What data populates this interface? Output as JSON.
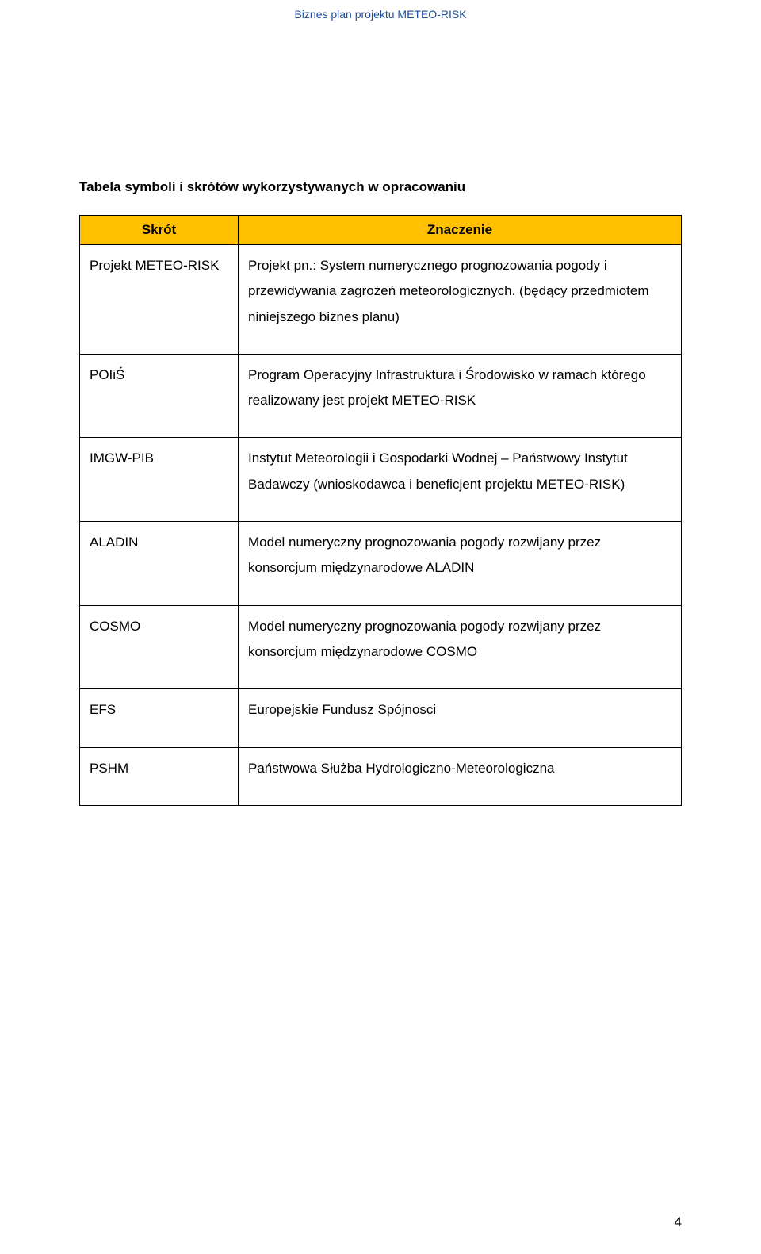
{
  "header": {
    "title": "Biznes plan projektu METEO-RISK"
  },
  "tableTitle": "Tabela symboli i skrótów wykorzystywanych w opracowaniu",
  "columns": {
    "skrot": "Skrót",
    "znaczenie": "Znaczenie"
  },
  "rows": [
    {
      "skrot": "Projekt METEO-RISK",
      "znaczenie": "Projekt pn.: System numerycznego prognozowania pogody i przewidywania zagrożeń meteorologicznych. (będący przedmiotem niniejszego biznes planu)"
    },
    {
      "skrot": "POIiŚ",
      "znaczenie": "Program Operacyjny Infrastruktura i Środowisko w ramach którego realizowany jest projekt METEO-RISK"
    },
    {
      "skrot": "IMGW-PIB",
      "znaczenie": "Instytut Meteorologii i Gospodarki Wodnej – Państwowy Instytut Badawczy (wnioskodawca i beneficjent projektu METEO-RISK)"
    },
    {
      "skrot": "ALADIN",
      "znaczenie": "Model numeryczny prognozowania pogody rozwijany przez konsorcjum międzynarodowe ALADIN"
    },
    {
      "skrot": "COSMO",
      "znaczenie": "Model numeryczny prognozowania pogody rozwijany przez konsorcjum międzynarodowe COSMO"
    },
    {
      "skrot": "EFS",
      "znaczenie": "Europejskie Fundusz Spójnosci"
    },
    {
      "skrot": "PSHM",
      "znaczenie": "Państwowa Służba Hydrologiczno-Meteorologiczna"
    }
  ],
  "pageNumber": "4",
  "styles": {
    "headerColor": "#1f4e9c",
    "thBackground": "#ffc000",
    "borderColor": "#000000",
    "textColor": "#000000",
    "backgroundColor": "#ffffff",
    "fontFamily": "Arial",
    "bodyFontSize": 17,
    "headerFontSize": 14,
    "col1Width": 200
  }
}
